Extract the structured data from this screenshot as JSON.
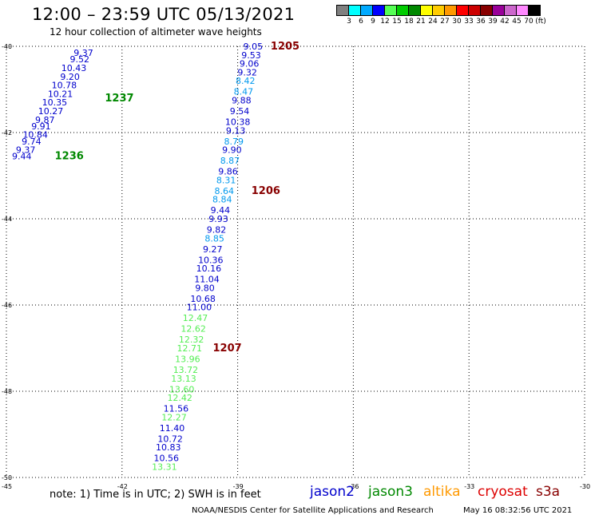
{
  "header": {
    "title": "12:00 – 23:59 UTC 05/13/2021",
    "subtitle": "12 hour collection of altimeter wave heights"
  },
  "colorbar": {
    "colors": [
      "#808080",
      "#00ffff",
      "#00aaff",
      "#0000ff",
      "#55ff55",
      "#00cc00",
      "#008800",
      "#ffff00",
      "#ffcc00",
      "#ff9900",
      "#ff0000",
      "#cc0000",
      "#880000",
      "#990099",
      "#cc66cc",
      "#ff88ff",
      "#000000"
    ],
    "labels": [
      "3",
      "6",
      "9",
      "12",
      "15",
      "18",
      "21",
      "24",
      "27",
      "30",
      "33",
      "36",
      "39",
      "42",
      "45",
      "70",
      "(ft)"
    ]
  },
  "footer": {
    "note": "note: 1) Time is in UTC; 2) SWH is in feet",
    "credit": "NOAA/NESDIS Center for Satellite Applications and Research",
    "timestamp": "May 16 08:32:56 UTC 2021",
    "legend": [
      {
        "label": "jason2",
        "color": "#0000cc"
      },
      {
        "label": "jason3",
        "color": "#008800"
      },
      {
        "label": "altika",
        "color": "#ff9900"
      },
      {
        "label": "cryosat",
        "color": "#dd0000"
      },
      {
        "label": "s3a",
        "color": "#880000"
      }
    ]
  },
  "chart_data": {
    "type": "scatter",
    "title": "12:00 – 23:59 UTC 05/13/2021",
    "subtitle": "12 hour collection of altimeter wave heights",
    "xlim": [
      -45,
      -30
    ],
    "ylim": [
      -50,
      -40
    ],
    "x_ticks": [
      "-45",
      "-42",
      "-39",
      "-36",
      "-33",
      "-30"
    ],
    "y_ticks": [
      "-40",
      "-42",
      "-44",
      "-46",
      "-48",
      "-50"
    ],
    "grid": true,
    "units": "ft",
    "track_labels": [
      {
        "label": "1205",
        "lon": -38.6,
        "lat": -40.0,
        "color": "#880000"
      },
      {
        "label": "1237",
        "lon": -42.9,
        "lat": -41.2,
        "color": "#008800"
      },
      {
        "label": "1236",
        "lon": -44.2,
        "lat": -42.55,
        "color": "#008800"
      },
      {
        "label": "1206",
        "lon": -39.1,
        "lat": -43.35,
        "color": "#880000"
      },
      {
        "label": "1207",
        "lon": -40.1,
        "lat": -47.0,
        "color": "#880000"
      }
    ],
    "series": [
      {
        "name": "jason3",
        "color": "#0000cc",
        "points": [
          {
            "lon": -43.0,
            "lat": -40.15,
            "v": "9.37",
            "c": "#0000cc"
          },
          {
            "lon": -43.1,
            "lat": -40.3,
            "v": "9.52",
            "c": "#0000cc"
          },
          {
            "lon": -43.25,
            "lat": -40.5,
            "v": "10.43",
            "c": "#0000cc"
          },
          {
            "lon": -43.35,
            "lat": -40.7,
            "v": "9.20",
            "c": "#0000cc"
          },
          {
            "lon": -43.5,
            "lat": -40.9,
            "v": "10.78",
            "c": "#0000cc"
          },
          {
            "lon": -43.6,
            "lat": -41.1,
            "v": "10.21",
            "c": "#0000cc"
          },
          {
            "lon": -43.75,
            "lat": -41.3,
            "v": "10.35",
            "c": "#0000cc"
          },
          {
            "lon": -43.85,
            "lat": -41.5,
            "v": "10.27",
            "c": "#0000cc"
          },
          {
            "lon": -44.0,
            "lat": -41.7,
            "v": "9.87",
            "c": "#0000cc"
          },
          {
            "lon": -44.1,
            "lat": -41.85,
            "v": "9.91",
            "c": "#0000cc"
          },
          {
            "lon": -44.25,
            "lat": -42.05,
            "v": "10.84",
            "c": "#0000cc"
          },
          {
            "lon": -44.35,
            "lat": -42.2,
            "v": "9.74",
            "c": "#0000cc"
          },
          {
            "lon": -44.5,
            "lat": -42.4,
            "v": "9.37",
            "c": "#0000cc"
          },
          {
            "lon": -44.6,
            "lat": -42.55,
            "v": "9.44",
            "c": "#0000cc"
          }
        ]
      },
      {
        "name": "s3a",
        "color": "#0000cc",
        "points": [
          {
            "lon": -38.6,
            "lat": -40.0,
            "v": "9.05",
            "c": "#0000cc"
          },
          {
            "lon": -38.65,
            "lat": -40.2,
            "v": "9.53",
            "c": "#0000cc"
          },
          {
            "lon": -38.7,
            "lat": -40.4,
            "v": "9.06",
            "c": "#0000cc"
          },
          {
            "lon": -38.75,
            "lat": -40.6,
            "v": "9.32",
            "c": "#0000cc"
          },
          {
            "lon": -38.8,
            "lat": -40.8,
            "v": "8.42",
            "c": "#0099ee"
          },
          {
            "lon": -38.85,
            "lat": -41.05,
            "v": "8.47",
            "c": "#0099ee"
          },
          {
            "lon": -38.9,
            "lat": -41.25,
            "v": "9.88",
            "c": "#0000cc"
          },
          {
            "lon": -38.95,
            "lat": -41.5,
            "v": "9.54",
            "c": "#0000cc"
          },
          {
            "lon": -39.0,
            "lat": -41.75,
            "v": "10.38",
            "c": "#0000cc"
          },
          {
            "lon": -39.05,
            "lat": -41.95,
            "v": "9.13",
            "c": "#0000cc"
          },
          {
            "lon": -39.1,
            "lat": -42.2,
            "v": "8.79",
            "c": "#0099ee"
          },
          {
            "lon": -39.15,
            "lat": -42.4,
            "v": "9.90",
            "c": "#0000cc"
          },
          {
            "lon": -39.2,
            "lat": -42.65,
            "v": "8.87",
            "c": "#0099ee"
          },
          {
            "lon": -39.25,
            "lat": -42.9,
            "v": "9.86",
            "c": "#0000cc"
          },
          {
            "lon": -39.3,
            "lat": -43.1,
            "v": "8.31",
            "c": "#0099ee"
          },
          {
            "lon": -39.35,
            "lat": -43.35,
            "v": "8.64",
            "c": "#0099ee"
          },
          {
            "lon": -39.4,
            "lat": -43.55,
            "v": "8.84",
            "c": "#0099ee"
          },
          {
            "lon": -39.45,
            "lat": -43.8,
            "v": "9.44",
            "c": "#0000cc"
          },
          {
            "lon": -39.5,
            "lat": -44.0,
            "v": "9.93",
            "c": "#0000cc"
          },
          {
            "lon": -39.55,
            "lat": -44.25,
            "v": "9.82",
            "c": "#0000cc"
          },
          {
            "lon": -39.6,
            "lat": -44.45,
            "v": "8.85",
            "c": "#0099ee"
          },
          {
            "lon": -39.65,
            "lat": -44.7,
            "v": "9.27",
            "c": "#0000cc"
          },
          {
            "lon": -39.7,
            "lat": -44.95,
            "v": "10.36",
            "c": "#0000cc"
          },
          {
            "lon": -39.75,
            "lat": -45.15,
            "v": "10.16",
            "c": "#0000cc"
          },
          {
            "lon": -39.8,
            "lat": -45.4,
            "v": "11.04",
            "c": "#0000cc"
          },
          {
            "lon": -39.85,
            "lat": -45.6,
            "v": "9.80",
            "c": "#0000cc"
          },
          {
            "lon": -39.9,
            "lat": -45.85,
            "v": "10.68",
            "c": "#0000cc"
          },
          {
            "lon": -40.0,
            "lat": -46.05,
            "v": "11.00",
            "c": "#0000cc"
          },
          {
            "lon": -40.1,
            "lat": -46.3,
            "v": "12.47",
            "c": "#55ee55"
          },
          {
            "lon": -40.15,
            "lat": -46.55,
            "v": "12.62",
            "c": "#55ee55"
          },
          {
            "lon": -40.2,
            "lat": -46.8,
            "v": "12.32",
            "c": "#55ee55"
          },
          {
            "lon": -40.25,
            "lat": -47.0,
            "v": "12.71",
            "c": "#55ee55"
          },
          {
            "lon": -40.3,
            "lat": -47.25,
            "v": "13.96",
            "c": "#55ee55"
          },
          {
            "lon": -40.35,
            "lat": -47.5,
            "v": "13.72",
            "c": "#55ee55"
          },
          {
            "lon": -40.4,
            "lat": -47.7,
            "v": "13.13",
            "c": "#55ee55"
          },
          {
            "lon": -40.45,
            "lat": -47.95,
            "v": "13.60",
            "c": "#55ee55"
          },
          {
            "lon": -40.5,
            "lat": -48.15,
            "v": "12.42",
            "c": "#55ee55"
          },
          {
            "lon": -40.6,
            "lat": -48.4,
            "v": "11.56",
            "c": "#0000cc"
          },
          {
            "lon": -40.65,
            "lat": -48.6,
            "v": "12.27",
            "c": "#55ee55"
          },
          {
            "lon": -40.7,
            "lat": -48.85,
            "v": "11.40",
            "c": "#0000cc"
          },
          {
            "lon": -40.75,
            "lat": -49.1,
            "v": "10.72",
            "c": "#0000cc"
          },
          {
            "lon": -40.8,
            "lat": -49.3,
            "v": "10.83",
            "c": "#0000cc"
          },
          {
            "lon": -40.85,
            "lat": -49.55,
            "v": "10.56",
            "c": "#0000cc"
          },
          {
            "lon": -40.9,
            "lat": -49.75,
            "v": "13.31",
            "c": "#55ee55"
          }
        ]
      }
    ]
  }
}
